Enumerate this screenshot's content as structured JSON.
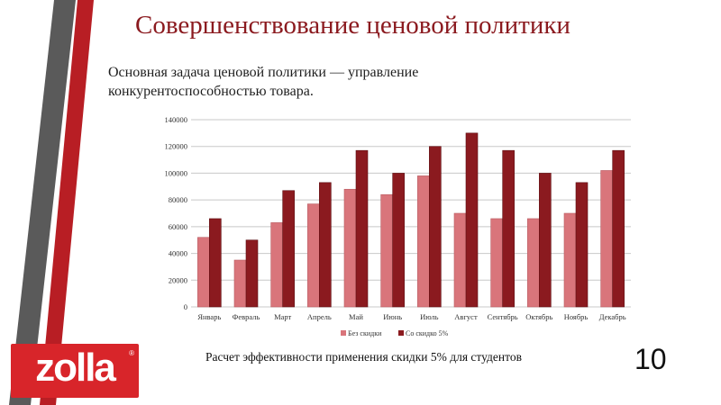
{
  "slide": {
    "title": "Совершенствование ценовой политики",
    "subtitle": "Основная задача ценовой политики — управление конкурентоспособностью товара.",
    "caption": "Расчет эффективности применения скидки 5% для студентов",
    "page_number": "10"
  },
  "logo": {
    "text": "zolla",
    "mark": "®",
    "color": "#d8252a"
  },
  "colors": {
    "title": "#8b1a1f",
    "series1": "#d9757b",
    "series2": "#8b1a1f",
    "stripe_gray": "#5a5a5a",
    "stripe_red": "#b81e24"
  },
  "chart_data": {
    "type": "bar",
    "categories": [
      "Январь",
      "Февраль",
      "Март",
      "Апрель",
      "Май",
      "Июнь",
      "Июль",
      "Август",
      "Сентябрь",
      "Октябрь",
      "Ноябрь",
      "Декабрь"
    ],
    "series": [
      {
        "name": "Без скидки",
        "values": [
          52000,
          35000,
          63000,
          77000,
          88000,
          84000,
          98000,
          70000,
          66000,
          66000,
          70000,
          102000
        ]
      },
      {
        "name": "Со скидко 5%",
        "values": [
          66000,
          50000,
          87000,
          93000,
          117000,
          100000,
          120000,
          130000,
          117000,
          100000,
          93000,
          117000
        ]
      }
    ],
    "yticks": [
      "0",
      "20000",
      "40000",
      "60000",
      "80000",
      "100000",
      "120000",
      "140000"
    ],
    "ylim": [
      0,
      140000
    ],
    "grid": true,
    "legend": "bottom"
  }
}
